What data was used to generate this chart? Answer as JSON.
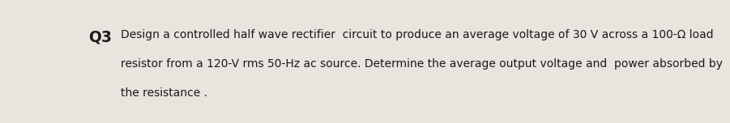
{
  "q_label": "Q3",
  "line1": "Design a controlled half wave rectifier  circuit to produce an average voltage of 30 V across a 100-Ω load",
  "line2": "resistor from a 120-V rms 50-Hz ac source. Determine the average output voltage and  power absorbed by",
  "line3": "the resistance .",
  "background_color": "#e8e4de",
  "text_color": "#1a1a1a",
  "q_fontsize": 13.5,
  "text_fontsize": 10.0
}
